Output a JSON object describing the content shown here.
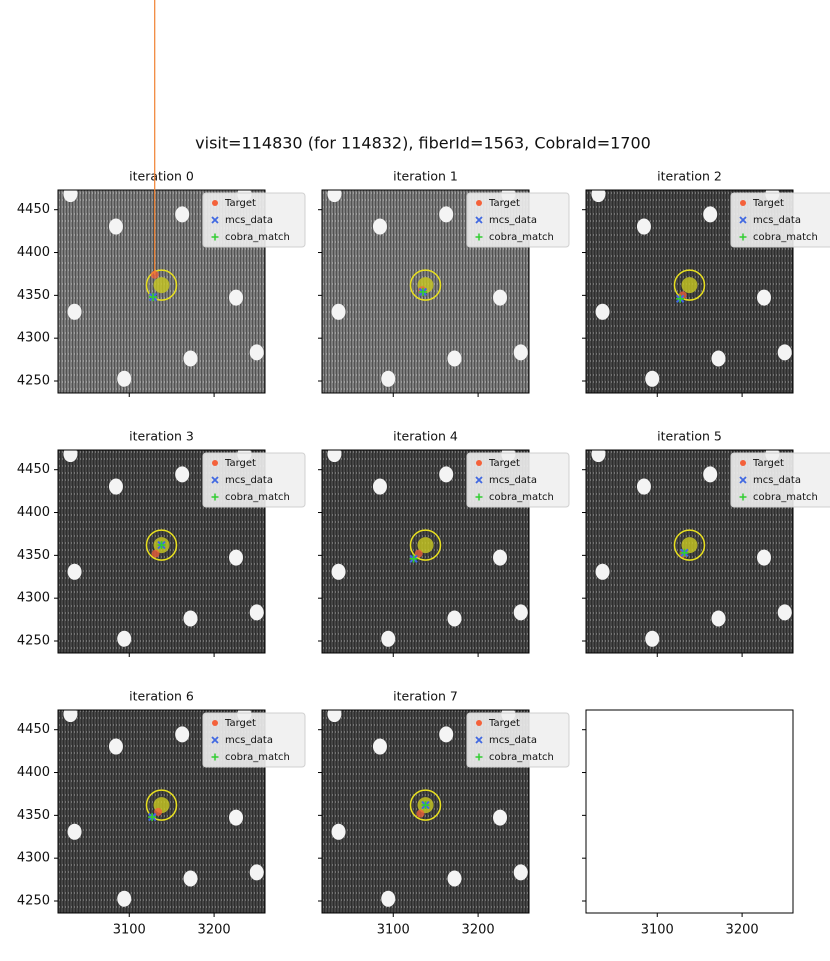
{
  "title": "visit=114830 (for 114832), fiberId=1563, CobraId=1700",
  "chart_data": [
    {
      "type": "scatter",
      "title": "iteration 0",
      "image_color": "#7c7c7c",
      "xlim": [
        3016,
        3260
      ],
      "ylim": [
        4236,
        4473
      ],
      "xticks": [
        3100,
        3200
      ],
      "yticks": [
        4250,
        4300,
        4350,
        4400,
        4450
      ],
      "show_xtick_labels": false,
      "show_ytick_labels": true,
      "legend": "upper right",
      "center": {
        "x": 3138,
        "y": 4362
      },
      "series": [
        {
          "name": "Target",
          "color": "#f4613a",
          "marker": "o",
          "x": [
            3130
          ],
          "values": [
            4374
          ]
        },
        {
          "name": "mcs_data",
          "color": "#4169e1",
          "marker": "x",
          "x": [
            3128
          ],
          "values": [
            4348
          ]
        },
        {
          "name": "cobra_match",
          "color": "#32cd32",
          "marker": "+",
          "x": [
            3128
          ],
          "values": [
            4348
          ]
        }
      ]
    },
    {
      "type": "scatter",
      "title": "iteration 1",
      "image_color": "#7c7c7c",
      "xlim": [
        3016,
        3260
      ],
      "ylim": [
        4236,
        4473
      ],
      "xticks": [
        3100,
        3200
      ],
      "yticks": [
        4250,
        4300,
        4350,
        4400,
        4450
      ],
      "show_xtick_labels": false,
      "show_ytick_labels": false,
      "legend": "upper right",
      "center": {
        "x": 3138,
        "y": 4362
      },
      "series": [
        {
          "name": "Target",
          "color": "#f4613a",
          "marker": "o",
          "x": [
            3134
          ],
          "values": [
            4356
          ]
        },
        {
          "name": "mcs_data",
          "color": "#4169e1",
          "marker": "x",
          "x": [
            3135
          ],
          "values": [
            4354
          ]
        },
        {
          "name": "cobra_match",
          "color": "#32cd32",
          "marker": "+",
          "x": [
            3135
          ],
          "values": [
            4354
          ]
        }
      ]
    },
    {
      "type": "scatter",
      "title": "iteration 2",
      "image_color": "#454545",
      "xlim": [
        3016,
        3260
      ],
      "ylim": [
        4236,
        4473
      ],
      "xticks": [
        3100,
        3200
      ],
      "yticks": [
        4250,
        4300,
        4350,
        4400,
        4450
      ],
      "show_xtick_labels": false,
      "show_ytick_labels": false,
      "legend": "upper right",
      "center": {
        "x": 3138,
        "y": 4362
      },
      "series": [
        {
          "name": "Target",
          "color": "#f4613a",
          "marker": "o",
          "x": [
            3130
          ],
          "values": [
            4350
          ]
        },
        {
          "name": "mcs_data",
          "color": "#4169e1",
          "marker": "x",
          "x": [
            3127
          ],
          "values": [
            4346
          ]
        },
        {
          "name": "cobra_match",
          "color": "#32cd32",
          "marker": "+",
          "x": [
            3127
          ],
          "values": [
            4346
          ]
        }
      ]
    },
    {
      "type": "scatter",
      "title": "iteration 3",
      "image_color": "#454545",
      "xlim": [
        3016,
        3260
      ],
      "ylim": [
        4236,
        4473
      ],
      "xticks": [
        3100,
        3200
      ],
      "yticks": [
        4250,
        4300,
        4350,
        4400,
        4450
      ],
      "show_xtick_labels": false,
      "show_ytick_labels": true,
      "legend": "upper right",
      "center": {
        "x": 3138,
        "y": 4362
      },
      "series": [
        {
          "name": "Target",
          "color": "#f4613a",
          "marker": "o",
          "x": [
            3131
          ],
          "values": [
            4352
          ]
        },
        {
          "name": "mcs_data",
          "color": "#4169e1",
          "marker": "x",
          "x": [
            3138
          ],
          "values": [
            4362
          ]
        },
        {
          "name": "cobra_match",
          "color": "#32cd32",
          "marker": "+",
          "x": [
            3138
          ],
          "values": [
            4362
          ]
        }
      ]
    },
    {
      "type": "scatter",
      "title": "iteration 4",
      "image_color": "#454545",
      "xlim": [
        3016,
        3260
      ],
      "ylim": [
        4236,
        4473
      ],
      "xticks": [
        3100,
        3200
      ],
      "yticks": [
        4250,
        4300,
        4350,
        4400,
        4450
      ],
      "show_xtick_labels": false,
      "show_ytick_labels": false,
      "legend": "upper right",
      "center": {
        "x": 3138,
        "y": 4362
      },
      "series": [
        {
          "name": "Target",
          "color": "#f4613a",
          "marker": "o",
          "x": [
            3130
          ],
          "values": [
            4352
          ]
        },
        {
          "name": "mcs_data",
          "color": "#4169e1",
          "marker": "x",
          "x": [
            3124
          ],
          "values": [
            4346
          ]
        },
        {
          "name": "cobra_match",
          "color": "#32cd32",
          "marker": "+",
          "x": [
            3124
          ],
          "values": [
            4346
          ]
        }
      ]
    },
    {
      "type": "scatter",
      "title": "iteration 5",
      "image_color": "#454545",
      "xlim": [
        3016,
        3260
      ],
      "ylim": [
        4236,
        4473
      ],
      "xticks": [
        3100,
        3200
      ],
      "yticks": [
        4250,
        4300,
        4350,
        4400,
        4450
      ],
      "show_xtick_labels": false,
      "show_ytick_labels": false,
      "legend": "upper right",
      "center": {
        "x": 3138,
        "y": 4362
      },
      "series": [
        {
          "name": "Target",
          "color": "#f4613a",
          "marker": "o",
          "x": [
            3131
          ],
          "values": [
            4352
          ]
        },
        {
          "name": "mcs_data",
          "color": "#4169e1",
          "marker": "x",
          "x": [
            3132
          ],
          "values": [
            4353
          ]
        },
        {
          "name": "cobra_match",
          "color": "#32cd32",
          "marker": "+",
          "x": [
            3132
          ],
          "values": [
            4353
          ]
        }
      ]
    },
    {
      "type": "scatter",
      "title": "iteration 6",
      "image_color": "#454545",
      "xlim": [
        3016,
        3260
      ],
      "ylim": [
        4236,
        4473
      ],
      "xticks": [
        3100,
        3200
      ],
      "yticks": [
        4250,
        4300,
        4350,
        4400,
        4450
      ],
      "show_xtick_labels": true,
      "show_ytick_labels": true,
      "legend": "upper right",
      "center": {
        "x": 3138,
        "y": 4362
      },
      "series": [
        {
          "name": "Target",
          "color": "#f4613a",
          "marker": "o",
          "x": [
            3134
          ],
          "values": [
            4354
          ]
        },
        {
          "name": "mcs_data",
          "color": "#4169e1",
          "marker": "x",
          "x": [
            3127
          ],
          "values": [
            4348
          ]
        },
        {
          "name": "cobra_match",
          "color": "#32cd32",
          "marker": "+",
          "x": [
            3127
          ],
          "values": [
            4348
          ]
        }
      ]
    },
    {
      "type": "scatter",
      "title": "iteration 7",
      "image_color": "#454545",
      "xlim": [
        3016,
        3260
      ],
      "ylim": [
        4236,
        4473
      ],
      "xticks": [
        3100,
        3200
      ],
      "yticks": [
        4250,
        4300,
        4350,
        4400,
        4450
      ],
      "show_xtick_labels": true,
      "show_ytick_labels": false,
      "legend": "upper right",
      "center": {
        "x": 3138,
        "y": 4362
      },
      "series": [
        {
          "name": "Target",
          "color": "#f4613a",
          "marker": "o",
          "x": [
            3132
          ],
          "values": [
            4352
          ]
        },
        {
          "name": "mcs_data",
          "color": "#4169e1",
          "marker": "x",
          "x": [
            3138
          ],
          "values": [
            4362
          ]
        },
        {
          "name": "cobra_match",
          "color": "#32cd32",
          "marker": "+",
          "x": [
            3138
          ],
          "values": [
            4362
          ]
        }
      ]
    },
    {
      "type": "scatter",
      "image_color": "#ffffff",
      "xlim": [
        3016,
        3260
      ],
      "ylim": [
        4236,
        4473
      ],
      "xticks": [
        3100,
        3200
      ],
      "yticks": [
        4250,
        4300,
        4350,
        4400,
        4450
      ],
      "show_xtick_labels": true,
      "show_ytick_labels": false
    }
  ]
}
